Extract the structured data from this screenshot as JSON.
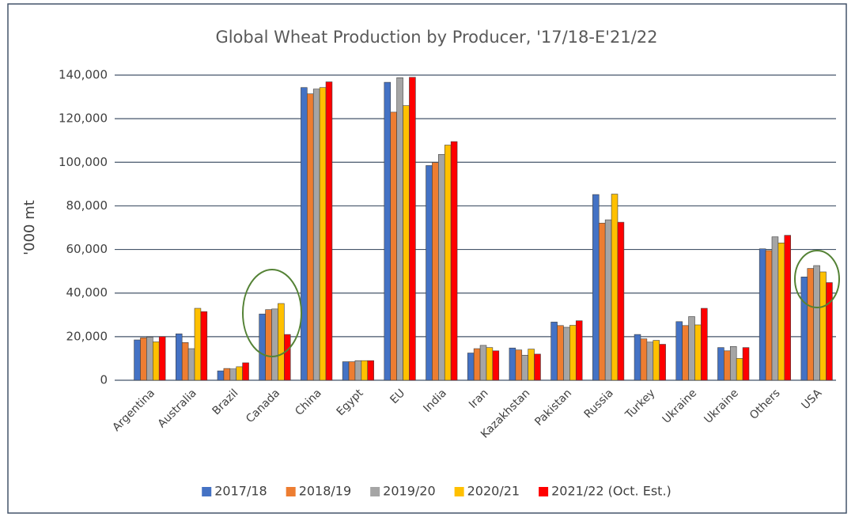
{
  "chart_data": {
    "type": "bar",
    "title": "Global Wheat Production by Producer, '17/18-E'21/22",
    "y_label": "'000 mt",
    "categories": [
      "Argentina",
      "Australia",
      "Brazil",
      "Canada",
      "China",
      "Egypt",
      "EU",
      "India",
      "Iran",
      "Kazakhstan",
      "Pakistan",
      "Russia",
      "Turkey",
      "Ukraine",
      "Ukraine",
      "Others",
      "USA"
    ],
    "series": [
      {
        "name": "2017/18",
        "color": "#4472c4",
        "values": [
          18500,
          21300,
          4300,
          30400,
          134300,
          8500,
          136700,
          98500,
          12500,
          14800,
          26700,
          85200,
          21000,
          26900,
          15000,
          60300,
          47400
        ]
      },
      {
        "name": "2018/19",
        "color": "#ed7d31",
        "values": [
          19500,
          17300,
          5400,
          32400,
          131400,
          8500,
          123000,
          99900,
          14500,
          13900,
          25100,
          72100,
          19000,
          25100,
          13500,
          59500,
          51300
        ]
      },
      {
        "name": "2019/20",
        "color": "#a5a5a5",
        "values": [
          19800,
          14500,
          5200,
          32700,
          133600,
          9000,
          138800,
          103600,
          16000,
          11500,
          24300,
          73600,
          17500,
          29200,
          15500,
          65800,
          52600
        ]
      },
      {
        "name": "2020/21",
        "color": "#ffc000",
        "values": [
          17600,
          33000,
          6200,
          35200,
          134300,
          9000,
          126000,
          107900,
          15000,
          14300,
          25200,
          85400,
          18300,
          25400,
          10000,
          63000,
          49700
        ]
      },
      {
        "name": "2021/22 (Oct. Est.)",
        "color": "#ff0000",
        "values": [
          20000,
          31500,
          8000,
          21000,
          136900,
          9000,
          139000,
          109500,
          13500,
          12000,
          27300,
          72500,
          16500,
          33000,
          15000,
          66500,
          44800
        ]
      }
    ],
    "ylim": [
      0,
      140000
    ],
    "yticks": [
      0,
      {
        "value": 20000,
        "label": "20,000"
      },
      {
        "value": 40000,
        "label": "40,000"
      },
      {
        "value": 60000,
        "label": "60,000"
      },
      {
        "value": 80000,
        "label": "80,000"
      },
      {
        "value": 100000,
        "label": "100,000"
      },
      {
        "value": 120000,
        "label": "120,000"
      },
      {
        "value": 140000,
        "label": "140,000"
      }
    ],
    "grid": true,
    "legend": "bottom"
  }
}
